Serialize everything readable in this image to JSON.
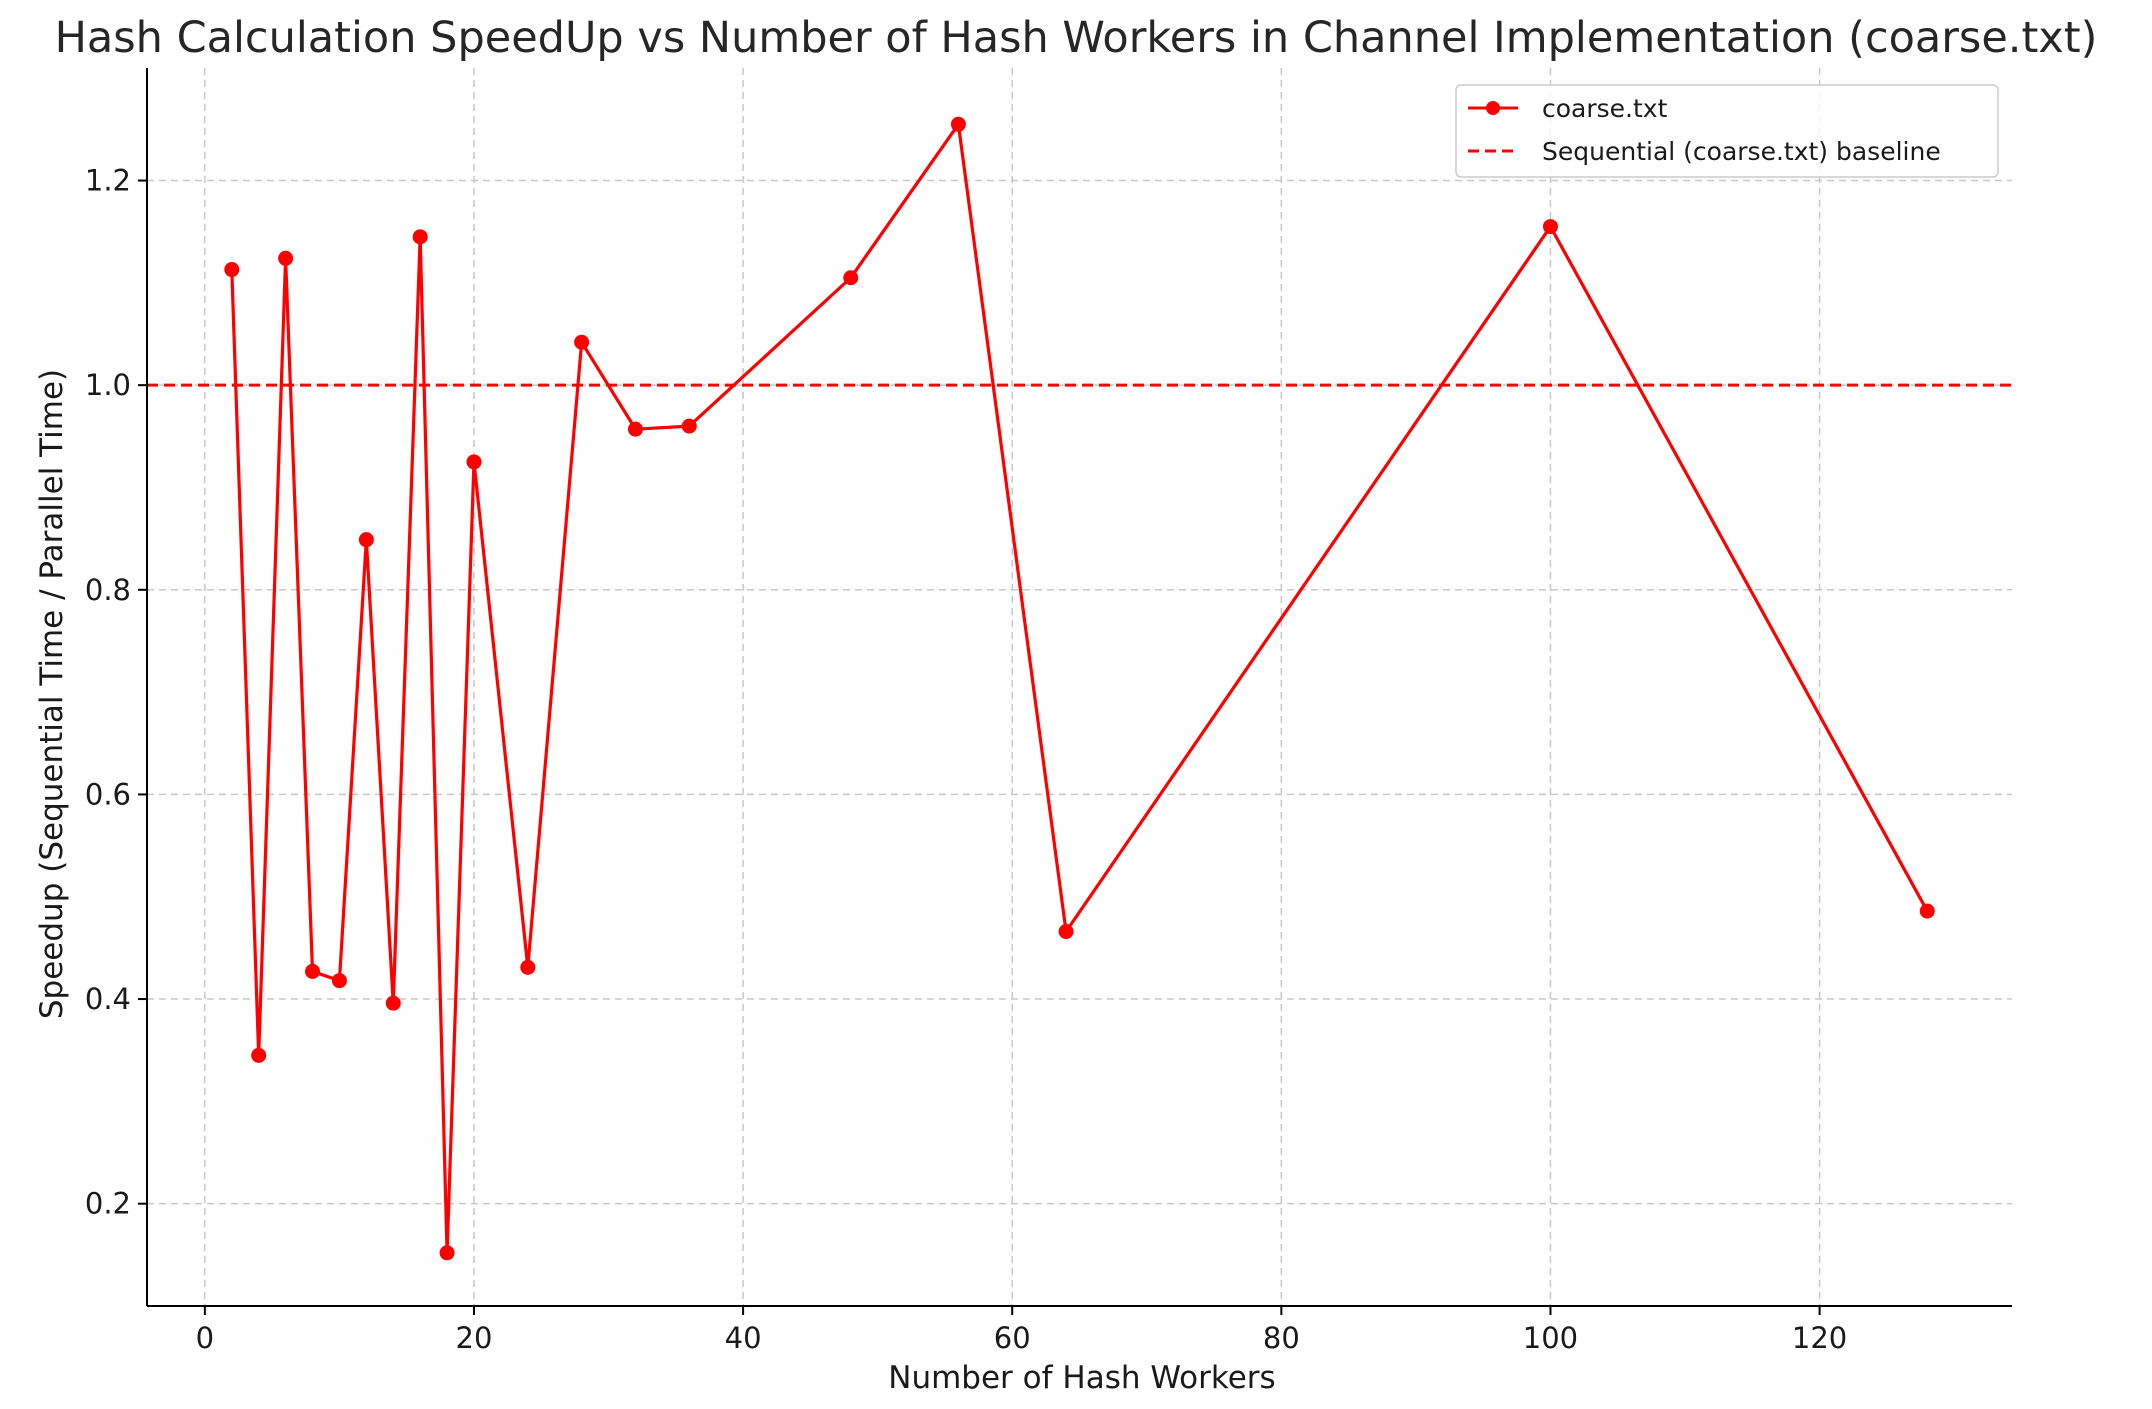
{
  "chart_data": {
    "type": "line",
    "title": "Hash Calculation SpeedUp vs Number of Hash Workers in Channel Implementation (coarse.txt)",
    "xlabel": "Number of Hash Workers",
    "ylabel": "Speedup (Sequential Time / Parallel Time)",
    "xlim": [
      -4.3,
      134.3
    ],
    "ylim": [
      0.1,
      1.31
    ],
    "xticks": [
      0,
      20,
      40,
      60,
      80,
      100,
      120
    ],
    "yticks": [
      0.2,
      0.4,
      0.6,
      0.8,
      1.0,
      1.2
    ],
    "grid": true,
    "legend_position": "top-right",
    "series": [
      {
        "name": "coarse.txt",
        "color": "#ff0000",
        "marker": "circle",
        "x": [
          2,
          4,
          6,
          8,
          10,
          12,
          14,
          16,
          18,
          20,
          24,
          28,
          32,
          36,
          48,
          56,
          64,
          100,
          128
        ],
        "y": [
          1.113,
          0.345,
          1.124,
          0.427,
          0.418,
          0.849,
          0.396,
          1.145,
          0.152,
          0.925,
          0.431,
          1.042,
          0.957,
          0.96,
          1.105,
          1.255,
          0.466,
          1.155,
          0.486
        ]
      }
    ],
    "baseline": {
      "name": "Sequential (coarse.txt) baseline",
      "y": 1.0,
      "color": "#ff0000",
      "style": "dashed"
    }
  }
}
